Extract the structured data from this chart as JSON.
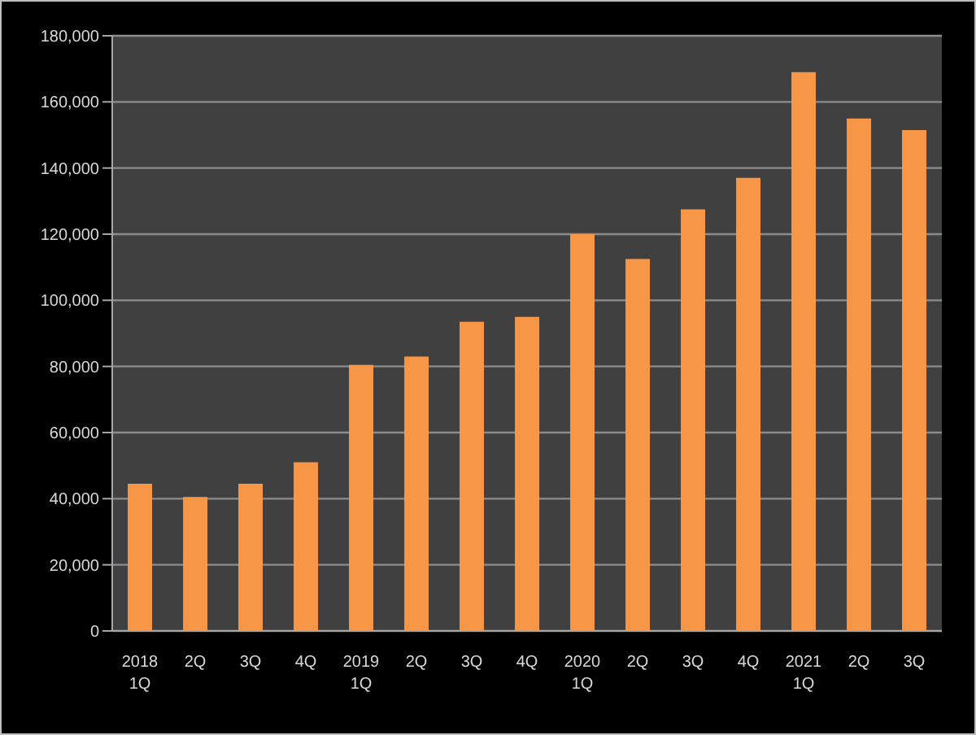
{
  "chart_data": {
    "type": "bar",
    "categories": [
      "2018\n1Q",
      "2Q",
      "3Q",
      "4Q",
      "2019\n1Q",
      "2Q",
      "3Q",
      "4Q",
      "2020\n1Q",
      "2Q",
      "3Q",
      "4Q",
      "2021\n1Q",
      "2Q",
      "3Q"
    ],
    "values": [
      44500,
      40500,
      44500,
      51000,
      80500,
      83000,
      93500,
      95000,
      120000,
      112500,
      127500,
      137000,
      169000,
      155000,
      151500
    ],
    "color": "#f79646",
    "ylim": [
      0,
      180000
    ],
    "yticks": [
      0,
      {
        "value": 20000,
        "label": "20,000"
      },
      {
        "value": 40000,
        "label": "40,000"
      },
      {
        "value": 60000,
        "label": "60,000"
      },
      {
        "value": 80000,
        "label": "80,000"
      },
      {
        "value": 100000,
        "label": "100,000"
      },
      {
        "value": 120000,
        "label": "120,000"
      },
      {
        "value": 140000,
        "label": "140,000"
      },
      {
        "value": 160000,
        "label": "160,000"
      },
      {
        "value": 180000,
        "label": "180,000"
      }
    ],
    "grid": "y"
  }
}
